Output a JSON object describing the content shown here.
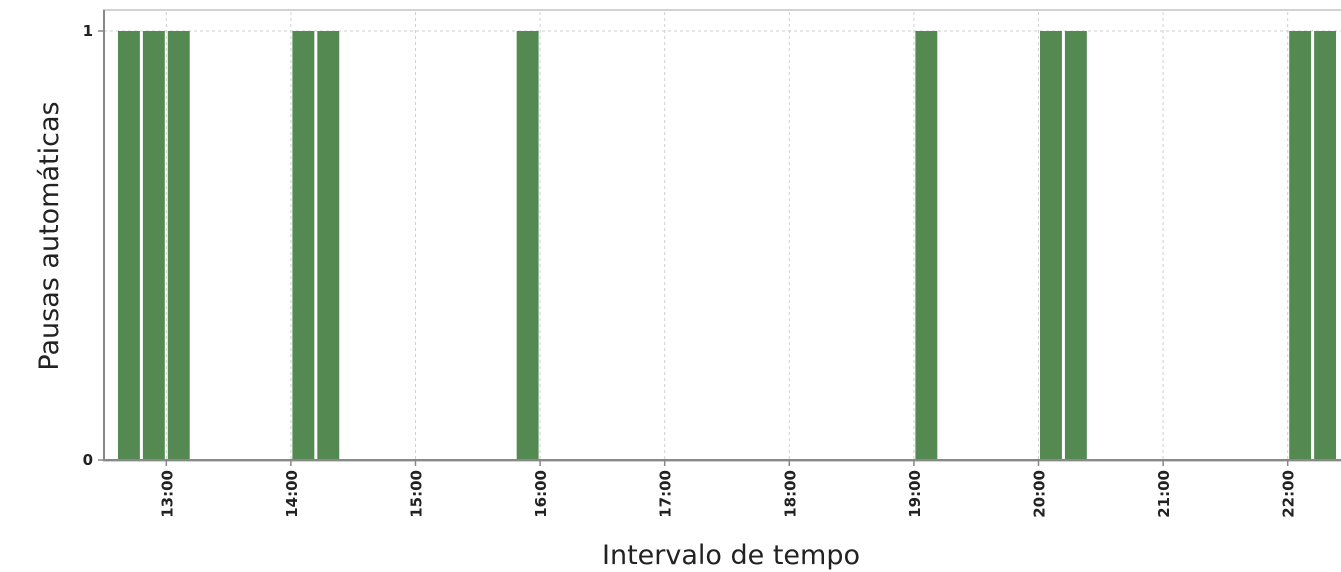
{
  "chart_data": {
    "type": "bar",
    "title": "",
    "xlabel": "Intervalo de tempo",
    "ylabel": "Pausas automáticas",
    "y_ticks": [
      "0",
      "1"
    ],
    "ylim": [
      0,
      1
    ],
    "x_ticks": [
      "13:00",
      "14:00",
      "15:00",
      "16:00",
      "17:00",
      "18:00",
      "19:00",
      "20:00",
      "21:00",
      "22:00"
    ],
    "xlim": [
      "12:30",
      "22:30"
    ],
    "bar_interval_minutes": 12,
    "bars": [
      {
        "start": "12:36",
        "value": 1
      },
      {
        "start": "12:48",
        "value": 1
      },
      {
        "start": "13:00",
        "value": 1
      },
      {
        "start": "14:00",
        "value": 1
      },
      {
        "start": "14:12",
        "value": 1
      },
      {
        "start": "15:48",
        "value": 1
      },
      {
        "start": "19:00",
        "value": 1
      },
      {
        "start": "20:00",
        "value": 1
      },
      {
        "start": "20:12",
        "value": 1
      },
      {
        "start": "22:00",
        "value": 1
      },
      {
        "start": "22:12",
        "value": 1
      }
    ],
    "grid": true,
    "legend": "none",
    "bar_color": "#548a52"
  }
}
